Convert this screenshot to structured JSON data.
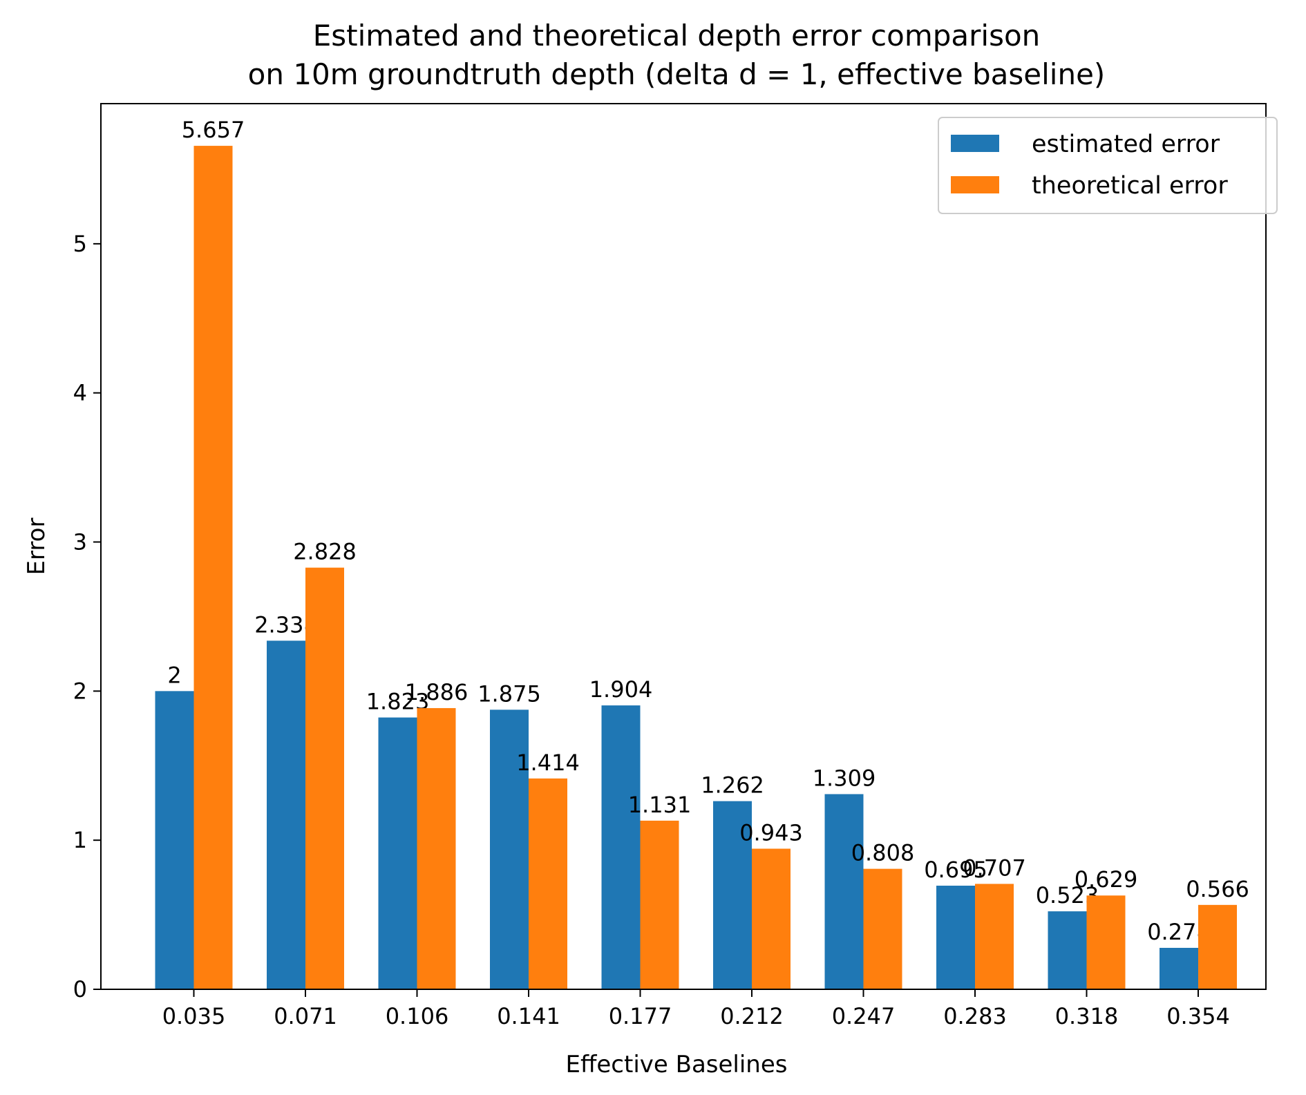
{
  "chart_data": {
    "type": "bar",
    "title_line1": "Estimated and theoretical depth error comparison",
    "title_line2": "on 10m groundtruth depth (delta d = 1, effective baseline)",
    "xlabel": "Effective Baselines",
    "ylabel": "Error",
    "categories": [
      "0.035",
      "0.071",
      "0.106",
      "0.141",
      "0.177",
      "0.212",
      "0.247",
      "0.283",
      "0.318",
      "0.354"
    ],
    "series": [
      {
        "name": "estimated error",
        "color": "#1f77b4",
        "values": [
          2,
          2.338,
          1.823,
          1.875,
          1.904,
          1.262,
          1.309,
          0.695,
          0.523,
          0.278
        ],
        "labels": [
          "2",
          "2.338",
          "1.823",
          "1.875",
          "1.904",
          "1.262",
          "1.309",
          "0.695",
          "0.523",
          "0.278"
        ]
      },
      {
        "name": "theoretical error",
        "color": "#ff7f0e",
        "values": [
          5.657,
          2.828,
          1.886,
          1.414,
          1.131,
          0.943,
          0.808,
          0.707,
          0.629,
          0.566
        ],
        "labels": [
          "5.657",
          "2.828",
          "1.886",
          "1.414",
          "1.131",
          "0.943",
          "0.808",
          "0.707",
          "0.629",
          "0.566"
        ]
      }
    ],
    "ylim": [
      0,
      5.94
    ],
    "yticks": [
      0,
      1,
      2,
      3,
      4,
      5
    ],
    "grid": false,
    "legend_position": "top-right"
  }
}
